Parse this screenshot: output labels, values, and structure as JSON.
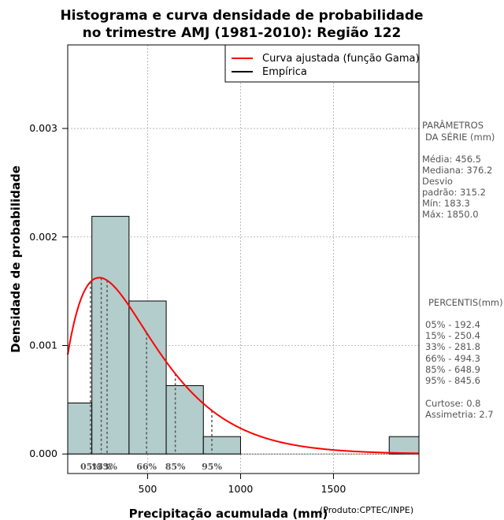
{
  "chart_data": {
    "type": "histogram",
    "title_line1": "Histograma e curva densidade de probabilidade",
    "title_line2": "no trimestre AMJ (1981-2010): Região 122",
    "xlabel": "Precipitação acumulada (mm)",
    "ylabel": "Densidade de probabilidade",
    "credit": "(Produto:CPTEC/INPE)",
    "xlim": [
      70,
      1960
    ],
    "ylim": [
      -0.00018,
      0.00377
    ],
    "x_ticks": [
      500,
      1000,
      1500
    ],
    "x_tick_labels": [
      "500",
      "1000",
      "1500"
    ],
    "y_ticks": [
      0.0,
      0.001,
      0.002,
      0.003
    ],
    "y_tick_labels": [
      "0.000",
      "0.001",
      "0.002",
      "0.003"
    ],
    "grid": true,
    "bins": [
      {
        "start": 70,
        "end": 200,
        "density": 0.00047
      },
      {
        "start": 200,
        "end": 400,
        "density": 0.00219
      },
      {
        "start": 400,
        "end": 600,
        "density": 0.00141
      },
      {
        "start": 600,
        "end": 800,
        "density": 0.00063
      },
      {
        "start": 800,
        "end": 1000,
        "density": 0.00016
      },
      {
        "start": 1800,
        "end": 1960,
        "density": 0.00016
      }
    ],
    "gamma_fit": {
      "shape": 2.1,
      "scale": 217.4
    },
    "legend": [
      {
        "label": "Curva ajustada (função Gama)",
        "color": "#ff0000"
      },
      {
        "label": "Empírica",
        "color": "#000000"
      }
    ],
    "percentile_markers": [
      {
        "x": 192.4,
        "label": "05%"
      },
      {
        "x": 250.4,
        "label": "15%"
      },
      {
        "x": 281.8,
        "label": "33%"
      },
      {
        "x": 494.3,
        "label": "66%"
      },
      {
        "x": 648.9,
        "label": "85%"
      },
      {
        "x": 845.6,
        "label": "95%"
      }
    ],
    "colors": {
      "bar_fill": "#b3cccc",
      "curve": "#ff0000",
      "grid": "#aaaaaa",
      "marker": "#555555"
    }
  },
  "side_panel": {
    "params_title_1": "PARÂMETROS",
    "params_title_2": "DA SÉRIE (mm)",
    "params": [
      "Média:  456.5",
      "Mediana:  376.2",
      "Desvio",
      "padrão:  315.2",
      "Mín:  183.3",
      "Máx:   1850.0"
    ],
    "percentis_title": "PERCENTIS(mm)",
    "percentis": [
      "05% -   192.4",
      "15% -   250.4",
      "33% -   281.8",
      "66% -   494.3",
      "85% -   648.9",
      "95% -   845.6"
    ],
    "stats": [
      "Curtose:  0.8",
      "Assimetria:  2.7"
    ]
  }
}
